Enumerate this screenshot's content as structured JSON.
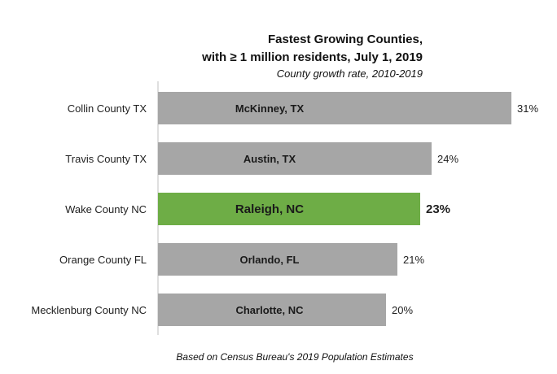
{
  "chart_data": {
    "type": "bar",
    "orientation": "horizontal",
    "title": [
      "Fastest Growing Counties,",
      "with ≥ 1 million residents, July 1, 2019"
    ],
    "subtitle": "County growth rate, 2010-2019",
    "footnote": "Based on Census Bureau's 2019 Population Estimates",
    "categories": [
      "Collin County TX",
      "Travis County TX",
      "Wake County NC",
      "Orange County FL",
      "Mecklenburg County NC"
    ],
    "bar_labels": [
      "McKinney, TX",
      "Austin, TX",
      "Raleigh, NC",
      "Orlando, FL",
      "Charlotte, NC"
    ],
    "values": [
      31,
      24,
      23,
      21,
      20
    ],
    "value_labels": [
      "31%",
      "24%",
      "23%",
      "21%",
      "20%"
    ],
    "highlight_index": 2,
    "xlim": [
      0,
      31
    ],
    "grid": false,
    "legend": "none",
    "colors": {
      "bar": "#a6a6a6",
      "highlight": "#6ead46",
      "axis": "#bfbfbf"
    }
  }
}
